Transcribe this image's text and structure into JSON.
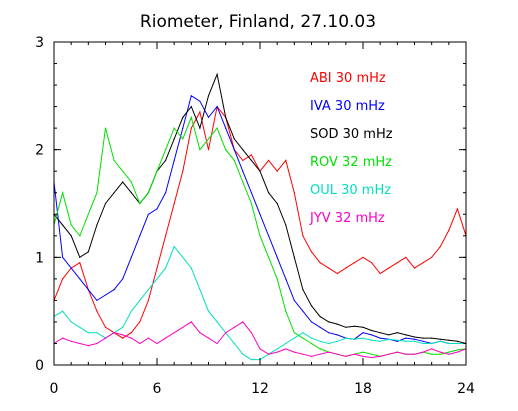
{
  "chart_data": {
    "type": "line",
    "title": "Riometer, Finland, 27.10.03",
    "xlabel": "",
    "ylabel": "",
    "xlim": [
      0,
      24
    ],
    "ylim": [
      0,
      3
    ],
    "x_ticks": [
      0,
      6,
      12,
      18,
      24
    ],
    "y_ticks": [
      0,
      1,
      2,
      3
    ],
    "grid": false,
    "legend_position": "top-right",
    "series": [
      {
        "name": "ABI 30 mHz",
        "color": "#ff0000",
        "x": [
          0,
          0.5,
          1,
          1.5,
          2,
          2.5,
          3,
          3.5,
          4,
          4.5,
          5,
          5.5,
          6,
          6.5,
          7,
          7.5,
          8,
          8.5,
          9,
          9.5,
          10,
          10.5,
          11,
          11.5,
          12,
          12.5,
          13,
          13.5,
          14,
          14.5,
          15,
          15.5,
          16,
          16.5,
          17,
          17.5,
          18,
          18.5,
          19,
          19.5,
          20,
          20.5,
          21,
          21.5,
          22,
          22.5,
          23,
          23.5,
          24
        ],
        "values": [
          0.6,
          0.8,
          0.9,
          0.95,
          0.7,
          0.5,
          0.35,
          0.3,
          0.25,
          0.3,
          0.4,
          0.6,
          0.9,
          1.2,
          1.5,
          1.8,
          2.2,
          2.35,
          2.0,
          2.4,
          2.3,
          2.0,
          1.9,
          1.95,
          1.8,
          1.9,
          1.8,
          1.9,
          1.6,
          1.2,
          1.05,
          0.95,
          0.9,
          0.85,
          0.9,
          0.95,
          1.0,
          0.95,
          0.85,
          0.9,
          0.95,
          1.0,
          0.9,
          0.95,
          1.0,
          1.1,
          1.25,
          1.45,
          1.2
        ]
      },
      {
        "name": "IVA 30 mHz",
        "color": "#0000ff",
        "x": [
          0,
          0.5,
          1,
          1.5,
          2,
          2.5,
          3,
          3.5,
          4,
          4.5,
          5,
          5.5,
          6,
          6.5,
          7,
          7.5,
          8,
          8.5,
          9,
          9.5,
          10,
          10.5,
          11,
          11.5,
          12,
          12.5,
          13,
          13.5,
          14,
          14.5,
          15,
          15.5,
          16,
          16.5,
          17,
          17.5,
          18,
          18.5,
          19,
          19.5,
          20,
          20.5,
          21,
          21.5,
          22,
          22.5,
          23,
          23.5,
          24
        ],
        "values": [
          1.7,
          1.0,
          0.9,
          0.8,
          0.7,
          0.6,
          0.65,
          0.7,
          0.8,
          1.0,
          1.2,
          1.4,
          1.45,
          1.6,
          1.9,
          2.2,
          2.5,
          2.45,
          2.3,
          2.4,
          2.2,
          2.0,
          1.8,
          1.6,
          1.4,
          1.2,
          1.0,
          0.8,
          0.6,
          0.5,
          0.4,
          0.35,
          0.3,
          0.28,
          0.25,
          0.24,
          0.3,
          0.28,
          0.25,
          0.24,
          0.22,
          0.25,
          0.24,
          0.22,
          0.2,
          0.22,
          0.2,
          0.2,
          0.2
        ]
      },
      {
        "name": "SOD 30 mHz",
        "color": "#000000",
        "x": [
          0,
          0.5,
          1,
          1.5,
          2,
          2.5,
          3,
          3.5,
          4,
          4.5,
          5,
          5.5,
          6,
          6.5,
          7,
          7.5,
          8,
          8.5,
          9,
          9.5,
          10,
          10.5,
          11,
          11.5,
          12,
          12.5,
          13,
          13.5,
          14,
          14.5,
          15,
          15.5,
          16,
          16.5,
          17,
          17.5,
          18,
          18.5,
          19,
          19.5,
          20,
          20.5,
          21,
          21.5,
          22,
          22.5,
          23,
          23.5,
          24
        ],
        "values": [
          1.4,
          1.3,
          1.2,
          1.0,
          1.05,
          1.3,
          1.5,
          1.6,
          1.7,
          1.6,
          1.5,
          1.6,
          1.8,
          1.9,
          2.1,
          2.3,
          2.4,
          2.2,
          2.5,
          2.7,
          2.3,
          2.1,
          2.0,
          1.9,
          1.8,
          1.6,
          1.5,
          1.3,
          1.0,
          0.7,
          0.55,
          0.45,
          0.4,
          0.38,
          0.35,
          0.36,
          0.35,
          0.32,
          0.3,
          0.28,
          0.3,
          0.28,
          0.26,
          0.25,
          0.25,
          0.24,
          0.23,
          0.22,
          0.2
        ]
      },
      {
        "name": "ROV 32 mHz",
        "color": "#00e000",
        "x": [
          0,
          0.5,
          1,
          1.5,
          2,
          2.5,
          3,
          3.5,
          4,
          4.5,
          5,
          5.5,
          6,
          6.5,
          7,
          7.5,
          8,
          8.5,
          9,
          9.5,
          10,
          10.5,
          11,
          11.5,
          12,
          12.5,
          13,
          13.5,
          14,
          14.5,
          15,
          15.5,
          16,
          16.5,
          17,
          17.5,
          18,
          18.5,
          19,
          19.5,
          20,
          20.5,
          21,
          21.5,
          22,
          22.5,
          23,
          23.5,
          24
        ],
        "values": [
          1.3,
          1.6,
          1.3,
          1.2,
          1.4,
          1.6,
          2.2,
          1.9,
          1.8,
          1.7,
          1.5,
          1.6,
          1.8,
          2.0,
          2.2,
          2.1,
          2.3,
          2.0,
          2.1,
          2.2,
          2.0,
          1.9,
          1.7,
          1.5,
          1.2,
          1.0,
          0.8,
          0.5,
          0.3,
          0.25,
          0.2,
          0.15,
          0.12,
          0.1,
          0.08,
          0.1,
          0.12,
          0.1,
          0.08,
          0.1,
          0.12,
          0.1,
          0.1,
          0.12,
          0.1,
          0.1,
          0.12,
          0.14,
          0.15
        ]
      },
      {
        "name": "OUL 30 mHz",
        "color": "#00e0c0",
        "x": [
          0,
          0.5,
          1,
          1.5,
          2,
          2.5,
          3,
          3.5,
          4,
          4.5,
          5,
          5.5,
          6,
          6.5,
          7,
          7.5,
          8,
          8.5,
          9,
          9.5,
          10,
          10.5,
          11,
          11.5,
          12,
          12.5,
          13,
          13.5,
          14,
          14.5,
          15,
          15.5,
          16,
          16.5,
          17,
          17.5,
          18,
          18.5,
          19,
          19.5,
          20,
          20.5,
          21,
          21.5,
          22,
          22.5,
          23,
          23.5,
          24
        ],
        "values": [
          0.45,
          0.5,
          0.4,
          0.35,
          0.3,
          0.3,
          0.25,
          0.3,
          0.35,
          0.5,
          0.6,
          0.7,
          0.8,
          0.9,
          1.1,
          1.0,
          0.9,
          0.7,
          0.5,
          0.4,
          0.3,
          0.2,
          0.1,
          0.05,
          0.05,
          0.1,
          0.15,
          0.2,
          0.25,
          0.3,
          0.25,
          0.22,
          0.2,
          0.22,
          0.25,
          0.24,
          0.25,
          0.23,
          0.22,
          0.24,
          0.23,
          0.22,
          0.22,
          0.2,
          0.2,
          0.22,
          0.2,
          0.2,
          0.2
        ]
      },
      {
        "name": "JYV 32 mHz",
        "color": "#ff00c0",
        "x": [
          0,
          0.5,
          1,
          1.5,
          2,
          2.5,
          3,
          3.5,
          4,
          4.5,
          5,
          5.5,
          6,
          6.5,
          7,
          7.5,
          8,
          8.5,
          9,
          9.5,
          10,
          10.5,
          11,
          11.5,
          12,
          12.5,
          13,
          13.5,
          14,
          14.5,
          15,
          15.5,
          16,
          16.5,
          17,
          17.5,
          18,
          18.5,
          19,
          19.5,
          20,
          20.5,
          21,
          21.5,
          22,
          22.5,
          23,
          23.5,
          24
        ],
        "values": [
          0.2,
          0.25,
          0.22,
          0.2,
          0.18,
          0.2,
          0.25,
          0.3,
          0.28,
          0.25,
          0.2,
          0.25,
          0.2,
          0.25,
          0.3,
          0.35,
          0.4,
          0.3,
          0.25,
          0.2,
          0.3,
          0.35,
          0.4,
          0.3,
          0.15,
          0.1,
          0.12,
          0.15,
          0.12,
          0.1,
          0.08,
          0.1,
          0.12,
          0.1,
          0.08,
          0.1,
          0.08,
          0.07,
          0.08,
          0.1,
          0.12,
          0.1,
          0.1,
          0.12,
          0.15,
          0.12,
          0.1,
          0.12,
          0.15
        ]
      }
    ]
  }
}
